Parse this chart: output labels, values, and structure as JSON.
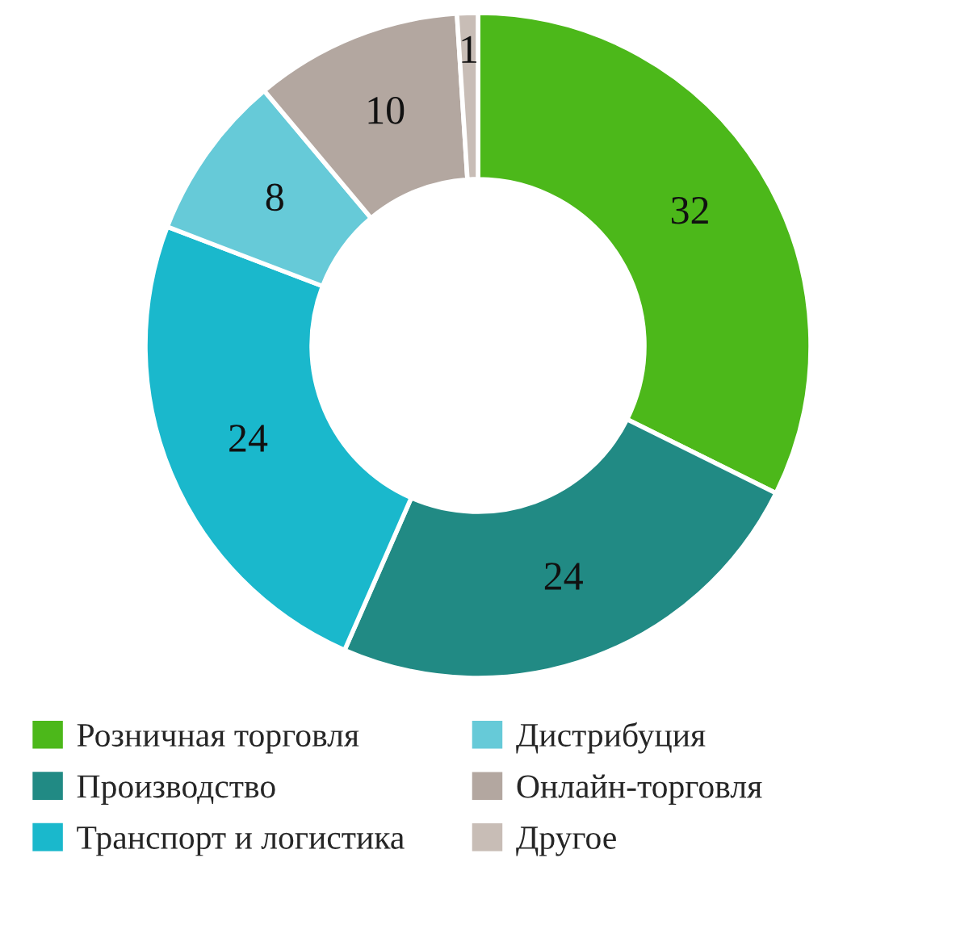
{
  "chart_data": {
    "type": "donut",
    "categories": [
      "Розничная торговля",
      "Производство",
      "Транспорт и логистика",
      "Дистрибуция",
      "Онлайн-торговля",
      "Другое"
    ],
    "values": [
      32,
      24,
      24,
      8,
      10,
      1
    ],
    "colors": [
      "#4cb81a",
      "#218a84",
      "#1ab8cc",
      "#66cad8",
      "#b3a7a0",
      "#c8bdb6"
    ],
    "data_labels": true,
    "legend": "bottom"
  }
}
